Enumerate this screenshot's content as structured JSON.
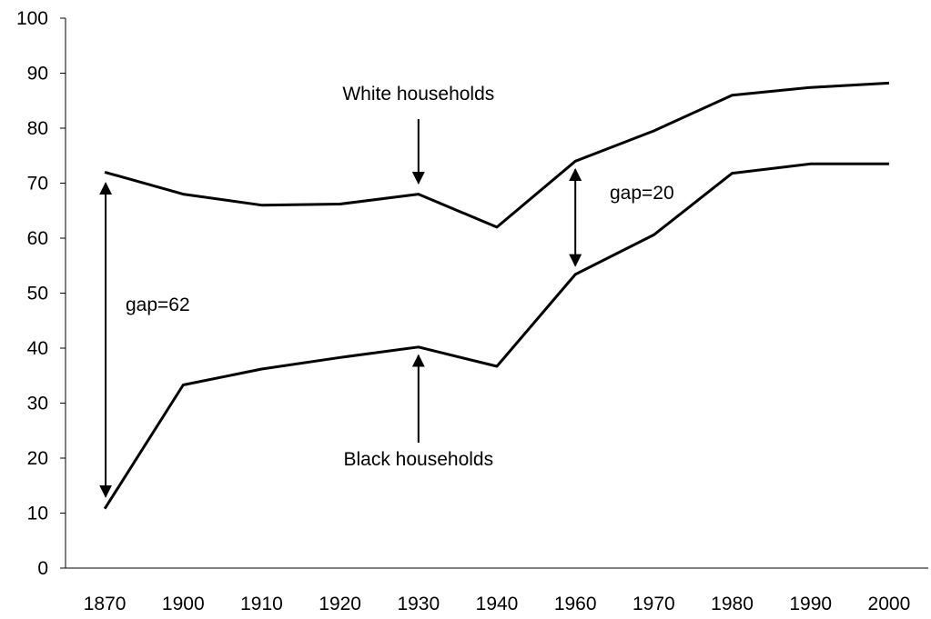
{
  "chart_data": {
    "type": "line",
    "categories": [
      "1870",
      "1900",
      "1910",
      "1920",
      "1930",
      "1940",
      "1960",
      "1970",
      "1980",
      "1990",
      "2000"
    ],
    "series": [
      {
        "name": "White households",
        "values": [
          72,
          68,
          66,
          66.2,
          68,
          62,
          74,
          79.5,
          86,
          87.4,
          88.2
        ]
      },
      {
        "name": "Black households",
        "values": [
          10.8,
          33.3,
          36.2,
          38.3,
          40.2,
          36.7,
          53.4,
          60.6,
          71.8,
          73.5,
          73.5
        ]
      }
    ],
    "ylim": [
      0,
      100
    ],
    "yticks": [
      0,
      10,
      20,
      30,
      40,
      50,
      60,
      70,
      80,
      90,
      100
    ],
    "grid": false,
    "legend": "none",
    "annotations": [
      {
        "text": "White households",
        "arrow_to": {
          "x": "1930",
          "y": 68
        }
      },
      {
        "text": "Black households",
        "arrow_to": {
          "x": "1930",
          "y": 40
        }
      },
      {
        "text": "gap=62",
        "span": {
          "x": "1870",
          "y_from": 70,
          "y_to": 13
        }
      },
      {
        "text": "gap=20",
        "span": {
          "x": "1960",
          "y_from": 72.5,
          "y_to": 55
        }
      }
    ]
  }
}
